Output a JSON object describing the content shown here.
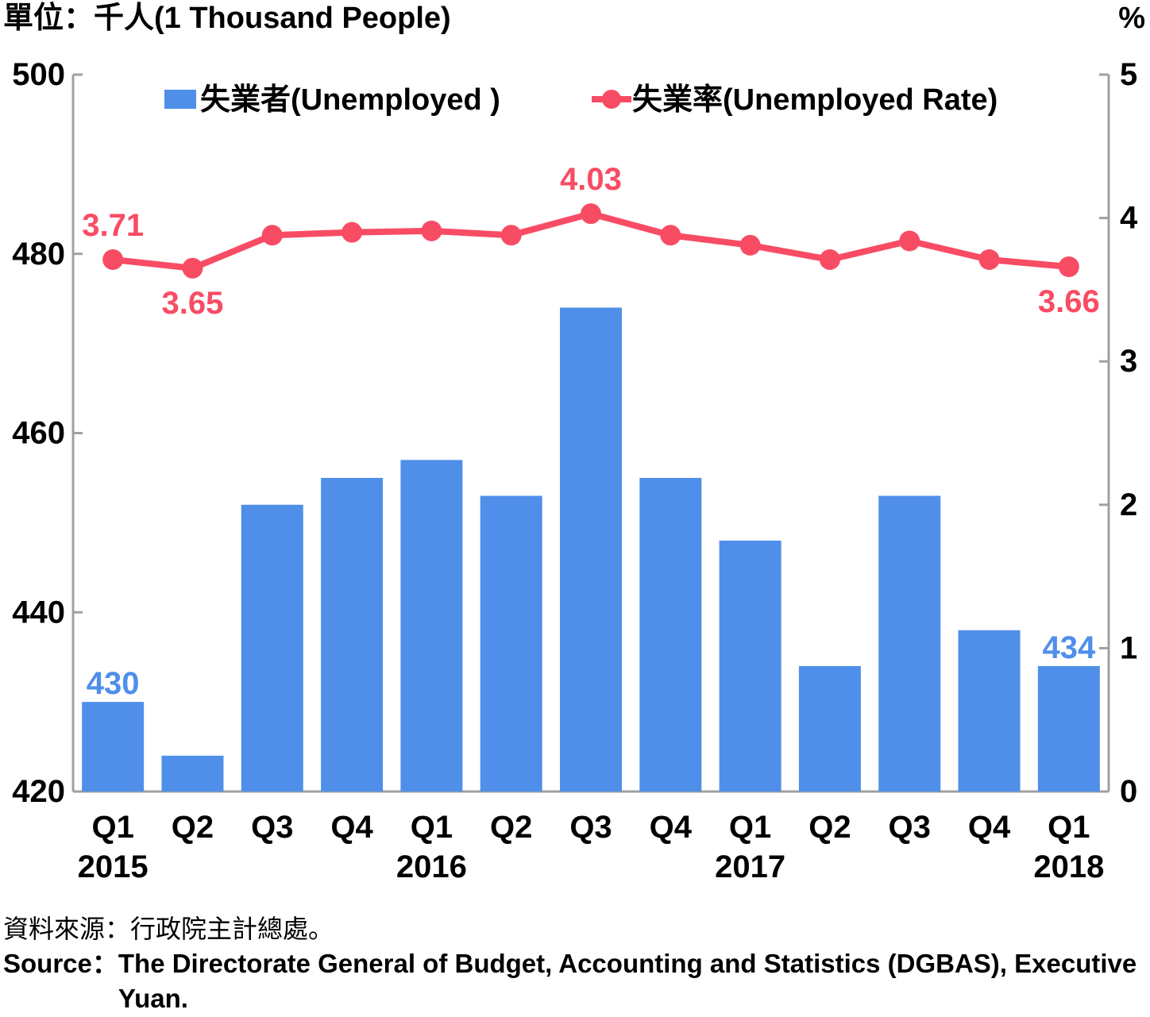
{
  "chart_data": {
    "type": "bar+line",
    "left_axis_unit_label": "單位：千人(1 Thousand People)",
    "right_axis_unit_label": "%",
    "left_ylim": [
      420,
      500
    ],
    "left_ticks": [
      420,
      440,
      460,
      480,
      500
    ],
    "right_ylim": [
      0,
      5
    ],
    "right_ticks": [
      0,
      1,
      2,
      3,
      4,
      5
    ],
    "categories": [
      "Q1",
      "Q2",
      "Q3",
      "Q4",
      "Q1",
      "Q2",
      "Q3",
      "Q4",
      "Q1",
      "Q2",
      "Q3",
      "Q4",
      "Q1"
    ],
    "year_labels": [
      {
        "index": 0,
        "label": "2015"
      },
      {
        "index": 4,
        "label": "2016"
      },
      {
        "index": 8,
        "label": "2017"
      },
      {
        "index": 12,
        "label": "2018"
      }
    ],
    "series": [
      {
        "name": "失業者(Unemployed )",
        "type": "bar",
        "axis": "left",
        "color": "#4f8fea",
        "values": [
          430,
          424,
          452,
          455,
          457,
          453,
          474,
          455,
          448,
          434,
          453,
          438,
          434
        ]
      },
      {
        "name": "失業率(Unemployed Rate)",
        "type": "line",
        "axis": "right",
        "color": "#f84c64",
        "values": [
          3.71,
          3.65,
          3.88,
          3.9,
          3.91,
          3.88,
          4.03,
          3.88,
          3.81,
          3.71,
          3.84,
          3.71,
          3.66
        ]
      }
    ],
    "data_labels": [
      {
        "series": 0,
        "index": 0,
        "label": "430"
      },
      {
        "series": 0,
        "index": 12,
        "label": "434"
      },
      {
        "series": 1,
        "index": 0,
        "label": "3.71"
      },
      {
        "series": 1,
        "index": 1,
        "label": "3.65"
      },
      {
        "series": 1,
        "index": 6,
        "label": "4.03"
      },
      {
        "series": 1,
        "index": 12,
        "label": "3.66"
      }
    ],
    "legend_position": "top"
  },
  "source": {
    "zh": "資料來源：行政院主計總處。",
    "en_label": "Source：",
    "en_text": "The Directorate General of Budget, Accounting and Statistics (DGBAS), Executive Yuan."
  }
}
